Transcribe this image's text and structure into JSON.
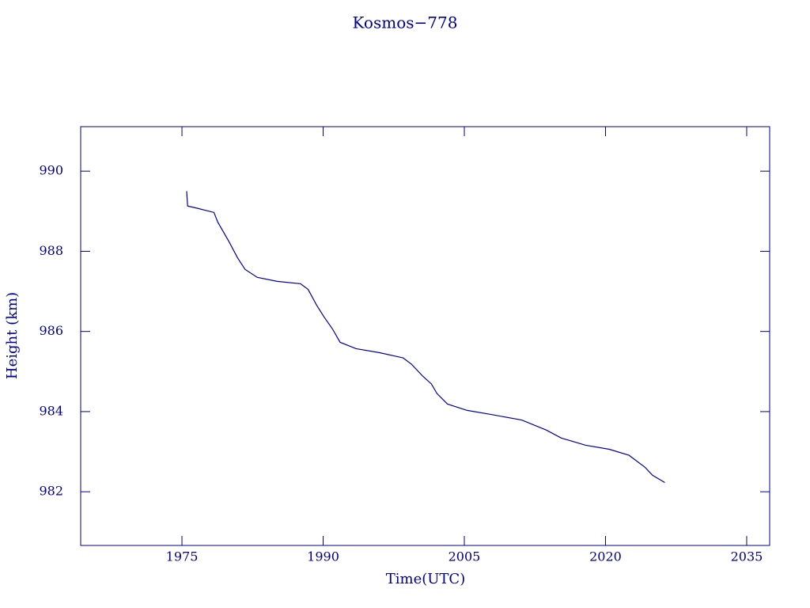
{
  "chart_data": {
    "type": "line",
    "title": "Kosmos−778",
    "xlabel": "Time(UTC)",
    "ylabel": "Height (km)",
    "color": "#0000a0",
    "x": [
      1975.5,
      1975.6,
      1976.7,
      1978.4,
      1978.8,
      1980.0,
      1980.9,
      1981.7,
      1983.0,
      1985.1,
      1987.6,
      1988.4,
      1989.3,
      1990.1,
      1991.0,
      1991.8,
      1993.5,
      1996.0,
      1998.5,
      1999.4,
      2000.6,
      2001.5,
      2002.1,
      2003.2,
      2005.3,
      2007.8,
      2011.1,
      2013.7,
      2015.3,
      2017.9,
      2020.4,
      2022.5,
      2024.2,
      2025.0,
      2026.3
    ],
    "values": [
      989.5,
      989.13,
      989.07,
      988.97,
      988.73,
      988.24,
      987.84,
      987.55,
      987.35,
      987.25,
      987.19,
      987.05,
      986.66,
      986.36,
      986.06,
      985.73,
      985.57,
      985.47,
      985.34,
      985.18,
      984.88,
      984.69,
      984.45,
      984.19,
      984.03,
      983.93,
      983.79,
      983.54,
      983.34,
      983.16,
      983.06,
      982.91,
      982.61,
      982.41,
      982.23
    ],
    "xlim": [
      1964.24,
      2037.44
    ],
    "xticks": [
      1975,
      1990,
      2005,
      2020,
      2035
    ],
    "ylim": [
      980.66,
      991.11
    ],
    "yticks": [
      982,
      984,
      986,
      988,
      990
    ]
  }
}
